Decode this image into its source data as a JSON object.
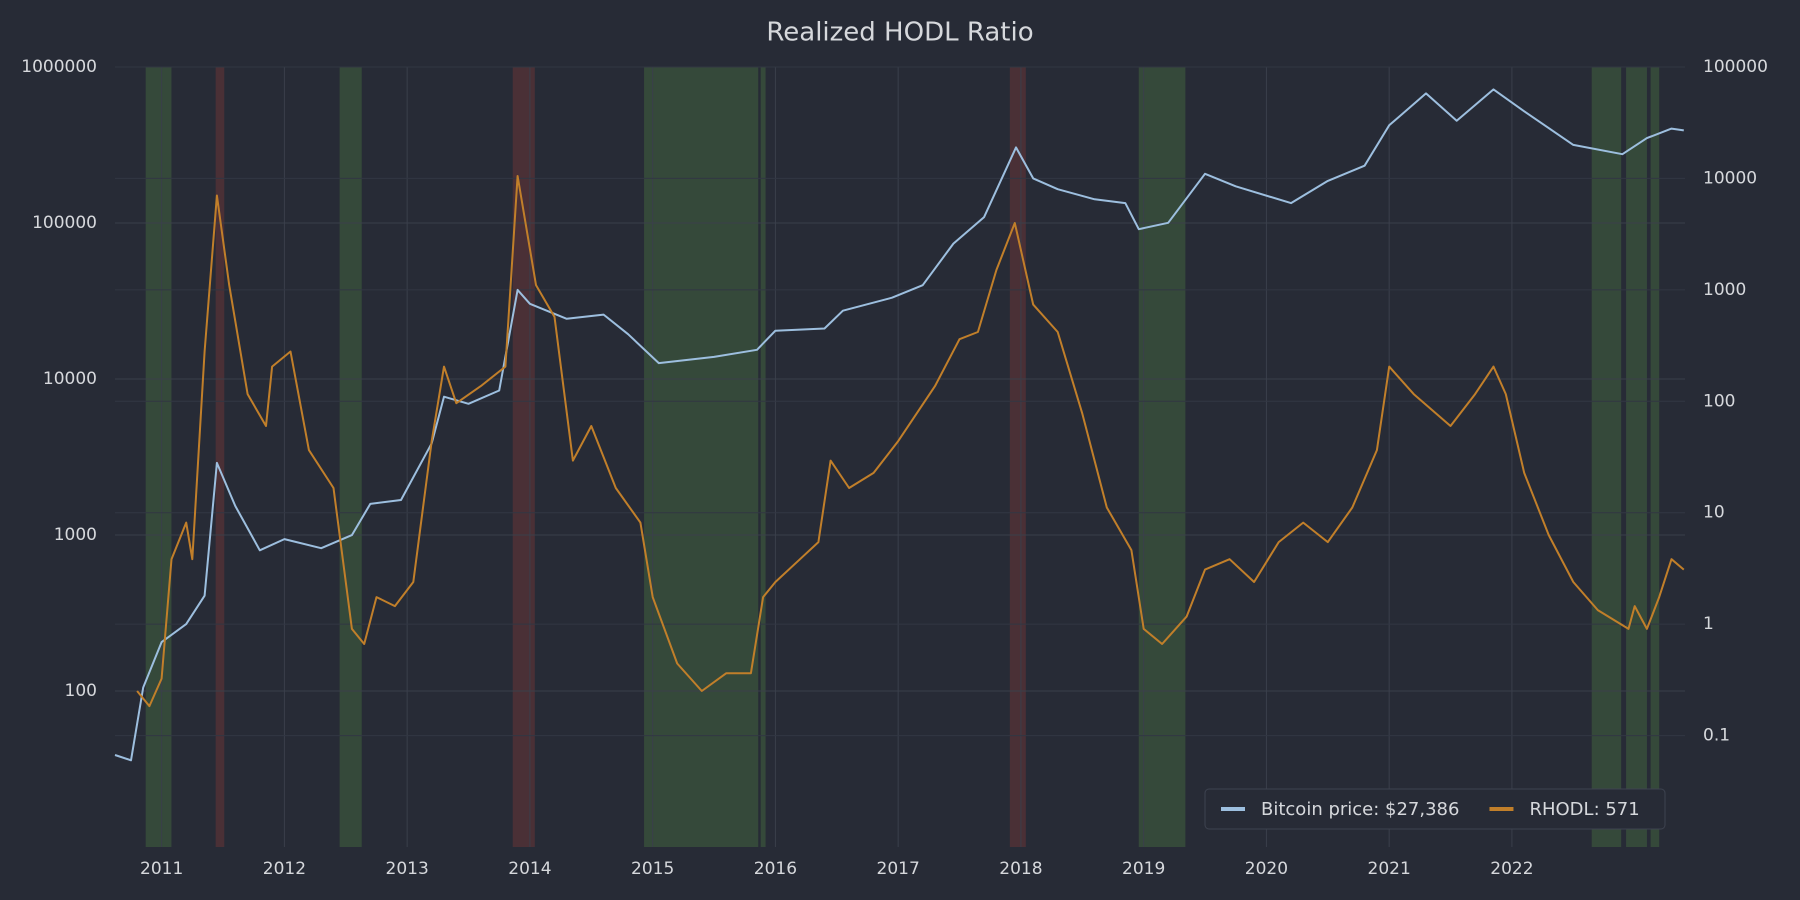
{
  "chart_data": {
    "type": "line",
    "title": "Realized HODL Ratio",
    "xlim": [
      2010.62,
      2023.41
    ],
    "xticks": [
      2011,
      2012,
      2013,
      2014,
      2015,
      2016,
      2017,
      2018,
      2019,
      2020,
      2021,
      2022
    ],
    "ylim": [
      10,
      1000000
    ],
    "yticks": [
      100,
      1000,
      10000,
      100000,
      1000000
    ],
    "y2lim": [
      0.01,
      100000
    ],
    "y2ticks": [
      0.1,
      1,
      10,
      100,
      1000,
      10000,
      100000
    ],
    "log_scale": true,
    "grid": true,
    "legend": "lower right",
    "bands": [
      {
        "start": 2010.87,
        "end": 2011.08,
        "color": "#35493a"
      },
      {
        "start": 2011.44,
        "end": 2011.51,
        "color": "#4a3036"
      },
      {
        "start": 2012.45,
        "end": 2012.63,
        "color": "#35493a"
      },
      {
        "start": 2013.86,
        "end": 2014.04,
        "color": "#4a3036"
      },
      {
        "start": 2014.93,
        "end": 2015.86,
        "color": "#35493a"
      },
      {
        "start": 2015.88,
        "end": 2015.92,
        "color": "#35493a"
      },
      {
        "start": 2017.91,
        "end": 2018.04,
        "color": "#4a3036"
      },
      {
        "start": 2018.96,
        "end": 2019.34,
        "color": "#35493a"
      },
      {
        "start": 2022.65,
        "end": 2022.89,
        "color": "#35493a"
      },
      {
        "start": 2022.93,
        "end": 2023.1,
        "color": "#35493a"
      },
      {
        "start": 2023.13,
        "end": 2023.2,
        "color": "#35493a"
      }
    ],
    "series": [
      {
        "name": "Bitcoin price: $27,386",
        "color": "#9dbfdf",
        "axis": "y2",
        "x": [
          2010.62,
          2010.75,
          2010.85,
          2011.0,
          2011.2,
          2011.35,
          2011.45,
          2011.6,
          2011.8,
          2012.0,
          2012.3,
          2012.55,
          2012.7,
          2012.95,
          2013.2,
          2013.3,
          2013.5,
          2013.75,
          2013.9,
          2014.0,
          2014.3,
          2014.6,
          2014.8,
          2015.05,
          2015.5,
          2015.85,
          2016.0,
          2016.4,
          2016.55,
          2016.95,
          2017.2,
          2017.45,
          2017.7,
          2017.96,
          2018.1,
          2018.3,
          2018.6,
          2018.85,
          2018.96,
          2019.2,
          2019.5,
          2019.75,
          2020.2,
          2020.5,
          2020.8,
          2021.0,
          2021.3,
          2021.55,
          2021.85,
          2022.1,
          2022.5,
          2022.9,
          2023.1,
          2023.3,
          2023.4
        ],
        "values": [
          0.067,
          0.06,
          0.27,
          0.69,
          1,
          1.8,
          28,
          11.5,
          4.6,
          5.8,
          4.8,
          6.3,
          12,
          13,
          42,
          110,
          95,
          125,
          1000,
          750,
          550,
          600,
          400,
          220,
          250,
          290,
          430,
          450,
          650,
          850,
          1100,
          2600,
          4500,
          19000,
          10000,
          8000,
          6500,
          6000,
          3500,
          4000,
          11000,
          8500,
          6000,
          9500,
          13000,
          30000,
          58000,
          33000,
          63000,
          40000,
          20000,
          16500,
          23000,
          28000,
          27000
        ]
      },
      {
        "name": "RHODL: 571",
        "color": "#c17f2a",
        "x": [
          2010.8,
          2010.9,
          2011.0,
          2011.08,
          2011.2,
          2011.25,
          2011.35,
          2011.45,
          2011.55,
          2011.7,
          2011.85,
          2011.9,
          2012.05,
          2012.2,
          2012.4,
          2012.55,
          2012.65,
          2012.75,
          2012.9,
          2013.05,
          2013.2,
          2013.3,
          2013.4,
          2013.6,
          2013.8,
          2013.9,
          2014.05,
          2014.2,
          2014.35,
          2014.5,
          2014.7,
          2014.9,
          2015.0,
          2015.2,
          2015.4,
          2015.6,
          2015.8,
          2015.9,
          2016.0,
          2016.2,
          2016.35,
          2016.45,
          2016.6,
          2016.8,
          2017.0,
          2017.15,
          2017.3,
          2017.5,
          2017.65,
          2017.8,
          2017.95,
          2018.1,
          2018.3,
          2018.5,
          2018.7,
          2018.9,
          2019.0,
          2019.15,
          2019.35,
          2019.5,
          2019.7,
          2019.9,
          2020.1,
          2020.3,
          2020.5,
          2020.7,
          2020.9,
          2021.0,
          2021.2,
          2021.5,
          2021.7,
          2021.85,
          2021.95,
          2022.1,
          2022.3,
          2022.5,
          2022.7,
          2022.95,
          2023.0,
          2023.1,
          2023.2,
          2023.3,
          2023.4
        ],
        "values": [
          100,
          80,
          120,
          700,
          1200,
          700,
          15000,
          150000,
          40000,
          8000,
          5000,
          12000,
          15000,
          3500,
          2000,
          250,
          200,
          400,
          350,
          500,
          4000,
          12000,
          7000,
          9000,
          12000,
          200000,
          40000,
          25000,
          3000,
          5000,
          2000,
          1200,
          400,
          150,
          100,
          130,
          130,
          400,
          500,
          700,
          900,
          3000,
          2000,
          2500,
          4000,
          6000,
          9000,
          18000,
          20000,
          50000,
          100000,
          30000,
          20000,
          6000,
          1500,
          800,
          250,
          200,
          300,
          600,
          700,
          500,
          900,
          1200,
          900,
          1500,
          3500,
          12000,
          8000,
          5000,
          8000,
          12000,
          8000,
          2500,
          1000,
          500,
          330,
          250,
          350,
          250,
          400,
          700,
          600
        ]
      }
    ]
  }
}
